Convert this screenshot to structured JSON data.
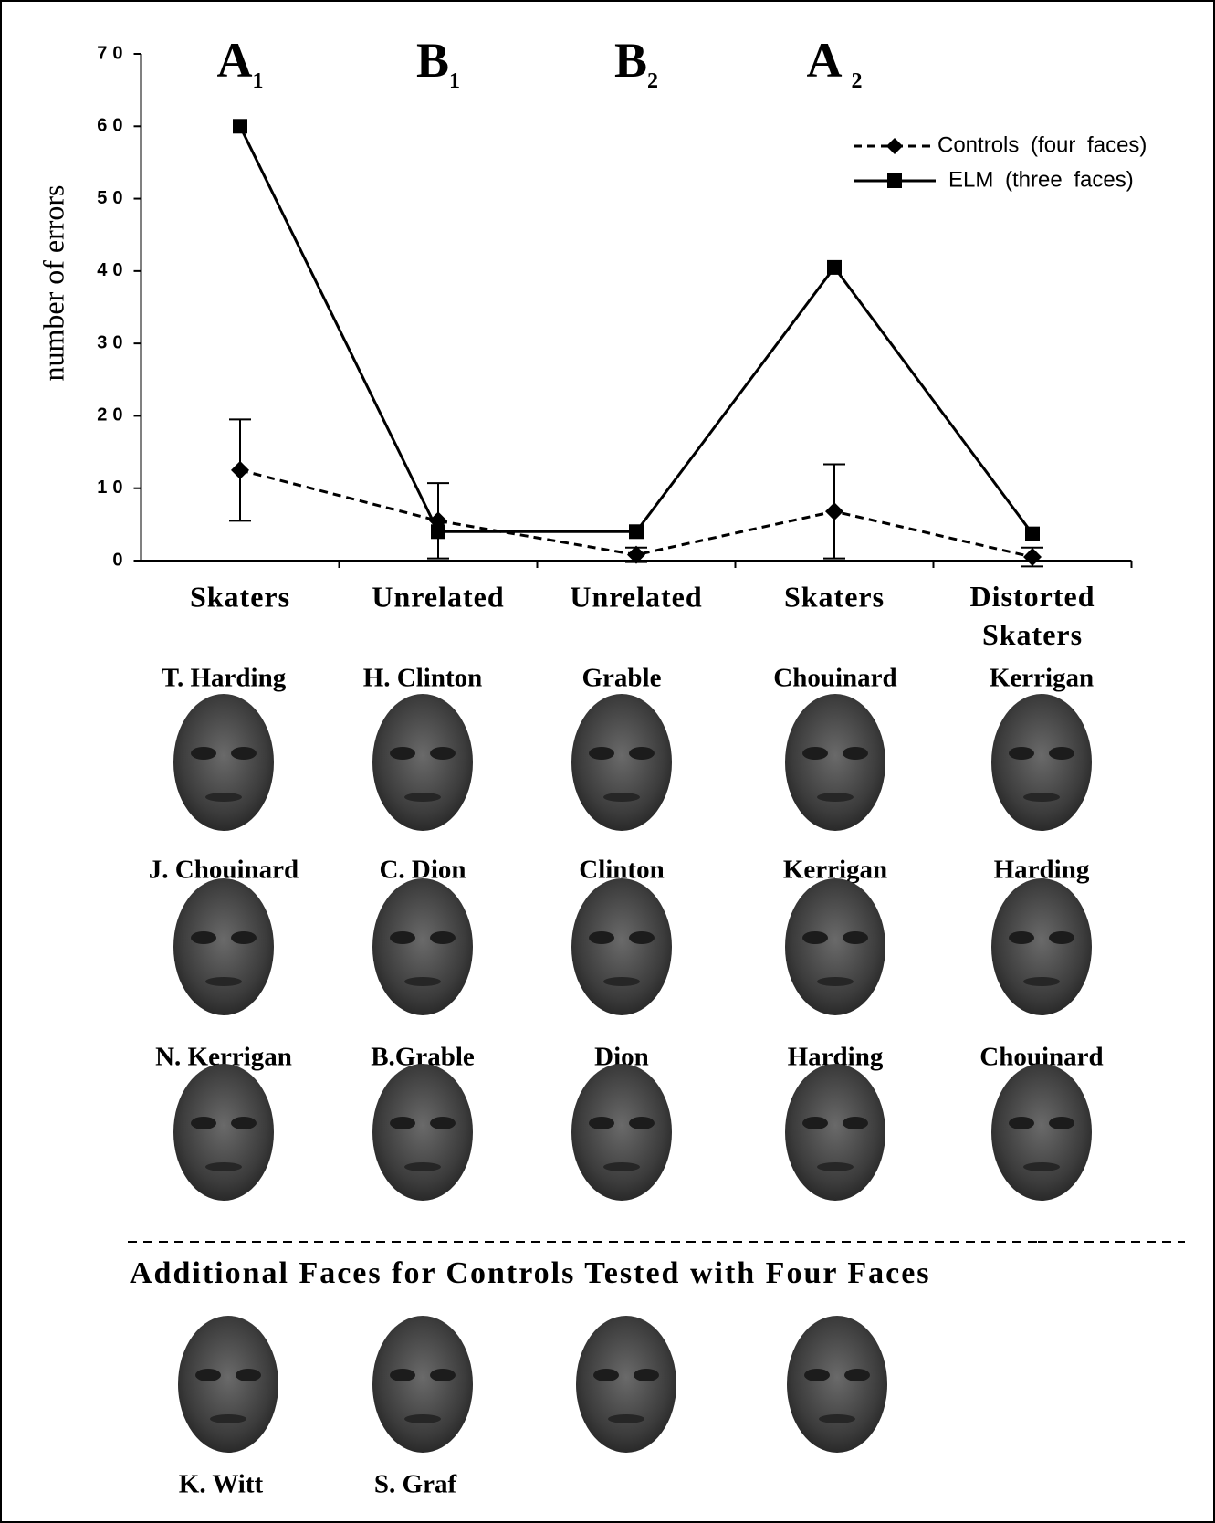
{
  "chart_data": {
    "type": "line",
    "phase_labels": [
      {
        "main": "A",
        "sub": "1"
      },
      {
        "main": "B",
        "sub": "1"
      },
      {
        "main": "B",
        "sub": "2"
      },
      {
        "main": "A",
        "sub": "2"
      }
    ],
    "y_label": "number of errors",
    "categories": [
      "Skaters",
      "Unrelated",
      "Unrelated",
      "Skaters",
      "Distorted Skaters"
    ],
    "series": [
      {
        "name": "Controls (four faces)",
        "color": "#000000",
        "dashed": true,
        "marker": "diamond",
        "values": [
          12.5,
          5.5,
          0.8,
          6.8,
          0.5
        ],
        "errors": [
          7,
          5.2,
          1,
          6.5,
          1.3
        ]
      },
      {
        "name": "ELM (three faces)",
        "color": "#000000",
        "dashed": false,
        "marker": "square",
        "values": [
          60,
          4,
          4,
          40.5,
          3.7
        ]
      }
    ],
    "ylim": [
      0,
      70
    ],
    "yticks": [
      0,
      10,
      20,
      30,
      40,
      50,
      60,
      70
    ],
    "legend": "top-right"
  },
  "faces": {
    "rows": [
      [
        "T. Harding",
        "H. Clinton",
        "Grable",
        "Chouinard",
        "Kerrigan"
      ],
      [
        "J. Chouinard",
        "C. Dion",
        "Clinton",
        "Kerrigan",
        "Harding"
      ],
      [
        "N. Kerrigan",
        "B.Grable",
        "Dion",
        "Harding",
        "Chouinard"
      ]
    ],
    "additional_title": "Additional Faces for Controls Tested with Four Faces",
    "additional_names": [
      "K. Witt",
      "S. Graf",
      null,
      null
    ]
  }
}
